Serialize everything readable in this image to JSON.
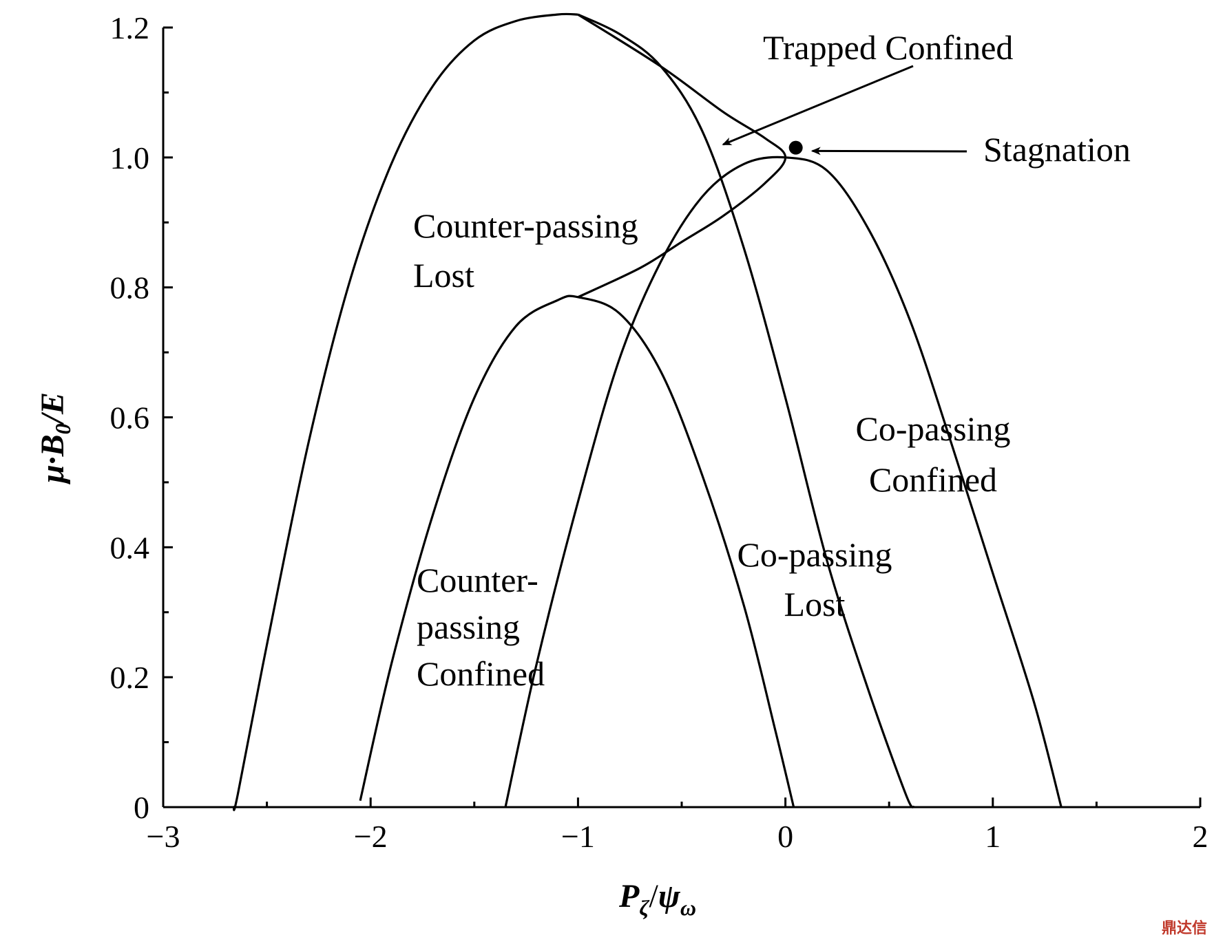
{
  "chart_data": {
    "type": "line",
    "title": "",
    "xlabel": {
      "main": "P",
      "sub": "ζ",
      "sep": "/",
      "main2": "ψ",
      "sub2": "ω"
    },
    "ylabel": {
      "pre": "μ·B",
      "sub": "0",
      "post": "/E"
    },
    "xlim": [
      -3,
      2
    ],
    "ylim": [
      0,
      1.2
    ],
    "xticks": [
      {
        "value": -3,
        "label": "−3"
      },
      {
        "value": -2,
        "label": "−2"
      },
      {
        "value": -1,
        "label": "−1"
      },
      {
        "value": 0,
        "label": "0"
      },
      {
        "value": 1,
        "label": "1"
      },
      {
        "value": 2,
        "label": "2"
      }
    ],
    "yticks": [
      {
        "value": 0,
        "label": "0"
      },
      {
        "value": 0.2,
        "label": "0.2"
      },
      {
        "value": 0.4,
        "label": "0.4"
      },
      {
        "value": 0.6,
        "label": "0.6"
      },
      {
        "value": 0.8,
        "label": "0.8"
      },
      {
        "value": 1.0,
        "label": "1.0"
      },
      {
        "value": 1.2,
        "label": "1.2"
      }
    ],
    "grid": false,
    "line_color": "#000000",
    "curves": [
      {
        "name": "outer-left-boundary",
        "points": [
          [
            -2.66,
            0
          ],
          [
            -2.64,
            0.02
          ],
          [
            -2.5,
            0.25
          ],
          [
            -2.3,
            0.56
          ],
          [
            -2.1,
            0.81
          ],
          [
            -1.9,
            0.99
          ],
          [
            -1.7,
            1.11
          ],
          [
            -1.5,
            1.18
          ],
          [
            -1.3,
            1.21
          ],
          [
            -1.1,
            1.22
          ],
          [
            -1.0,
            1.22
          ]
        ]
      },
      {
        "name": "outer-right-boundary",
        "points": [
          [
            -1.0,
            1.22
          ],
          [
            -0.8,
            1.19
          ],
          [
            -0.6,
            1.14
          ],
          [
            -0.4,
            1.04
          ],
          [
            -0.2,
            0.86
          ],
          [
            0.0,
            0.63
          ],
          [
            0.2,
            0.38
          ],
          [
            0.4,
            0.18
          ],
          [
            0.58,
            0.02
          ],
          [
            0.62,
            0
          ]
        ]
      },
      {
        "name": "trapped-loop",
        "points": [
          [
            -1.0,
            1.22
          ],
          [
            -0.6,
            1.14
          ],
          [
            -0.3,
            1.07
          ],
          [
            -0.1,
            1.03
          ],
          [
            0.0,
            1.0
          ],
          [
            -0.1,
            0.96
          ],
          [
            -0.3,
            0.91
          ],
          [
            -0.5,
            0.87
          ],
          [
            -0.7,
            0.83
          ],
          [
            -1.0,
            0.785
          ]
        ]
      },
      {
        "name": "inner-counter-boundary",
        "points": [
          [
            -2.05,
            0.01
          ],
          [
            -1.9,
            0.22
          ],
          [
            -1.7,
            0.45
          ],
          [
            -1.5,
            0.63
          ],
          [
            -1.3,
            0.74
          ],
          [
            -1.1,
            0.78
          ],
          [
            -1.0,
            0.785
          ],
          [
            -0.8,
            0.76
          ],
          [
            -0.6,
            0.67
          ],
          [
            -0.4,
            0.51
          ],
          [
            -0.2,
            0.31
          ],
          [
            -0.05,
            0.12
          ],
          [
            0.04,
            0
          ]
        ]
      },
      {
        "name": "co-passing-boundary",
        "points": [
          [
            -1.35,
            0
          ],
          [
            -1.2,
            0.22
          ],
          [
            -1.0,
            0.47
          ],
          [
            -0.8,
            0.69
          ],
          [
            -0.6,
            0.84
          ],
          [
            -0.4,
            0.94
          ],
          [
            -0.2,
            0.99
          ],
          [
            0.0,
            1.0
          ],
          [
            0.2,
            0.98
          ],
          [
            0.4,
            0.89
          ],
          [
            0.6,
            0.75
          ],
          [
            0.8,
            0.56
          ],
          [
            1.0,
            0.36
          ],
          [
            1.2,
            0.16
          ],
          [
            1.33,
            0
          ]
        ]
      }
    ],
    "stagnation_point": [
      0.05,
      1.015
    ],
    "annotations": [
      {
        "id": "trapped-confined",
        "lines": [
          "Trapped Confined"
        ],
        "arrow_to": [
          -0.3,
          1.02
        ]
      },
      {
        "id": "stagnation",
        "lines": [
          "Stagnation"
        ],
        "arrow_to": [
          0.13,
          1.01
        ]
      },
      {
        "id": "counter-passing-lost",
        "lines": [
          "Counter-passing",
          "Lost"
        ]
      },
      {
        "id": "co-passing-confined",
        "lines": [
          "Co-passing",
          "Confined"
        ]
      },
      {
        "id": "co-passing-lost",
        "lines": [
          "Co-passing",
          "Lost"
        ]
      },
      {
        "id": "counter-passing-confined",
        "lines": [
          "Counter-",
          "passing",
          "Confined"
        ]
      }
    ]
  },
  "watermark": "鼎达信"
}
